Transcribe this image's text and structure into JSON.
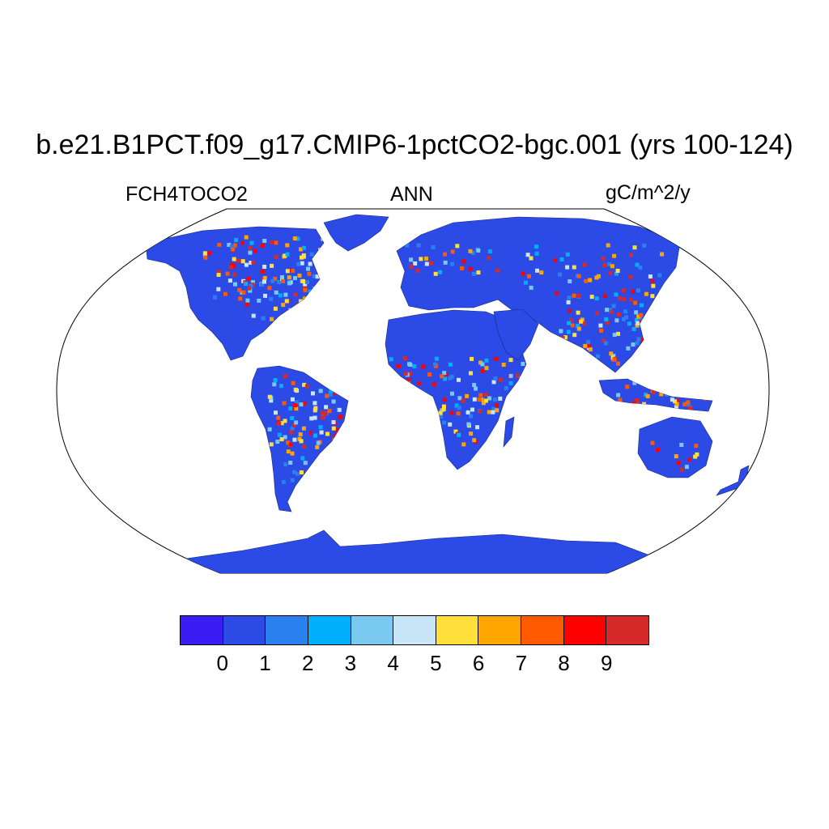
{
  "title": "b.e21.B1PCT.f09_g17.CMIP6-1pctCO2-bgc.001 (yrs 100-124)",
  "variable": "FCH4TOCO2",
  "period": "ANN",
  "units": "gC/m^2/y",
  "map": {
    "projection": "Robinson",
    "ocean_color": "#ffffff",
    "land_base_color": "#2b4ae6",
    "regions": [
      "north-america",
      "greenland",
      "south-america",
      "europe-asia",
      "africa",
      "arabia",
      "madagascar",
      "australia",
      "antarctica"
    ]
  },
  "colorbar": {
    "colors": [
      "#3c1cf4",
      "#2b4ae6",
      "#2a80ee",
      "#00b0ff",
      "#79c9f0",
      "#c8e6f8",
      "#ffe03a",
      "#ffa500",
      "#ff5a00",
      "#ff0000",
      "#d62a2a"
    ],
    "labels": [
      "0",
      "1",
      "2",
      "3",
      "4",
      "5",
      "6",
      "7",
      "8",
      "9"
    ]
  }
}
